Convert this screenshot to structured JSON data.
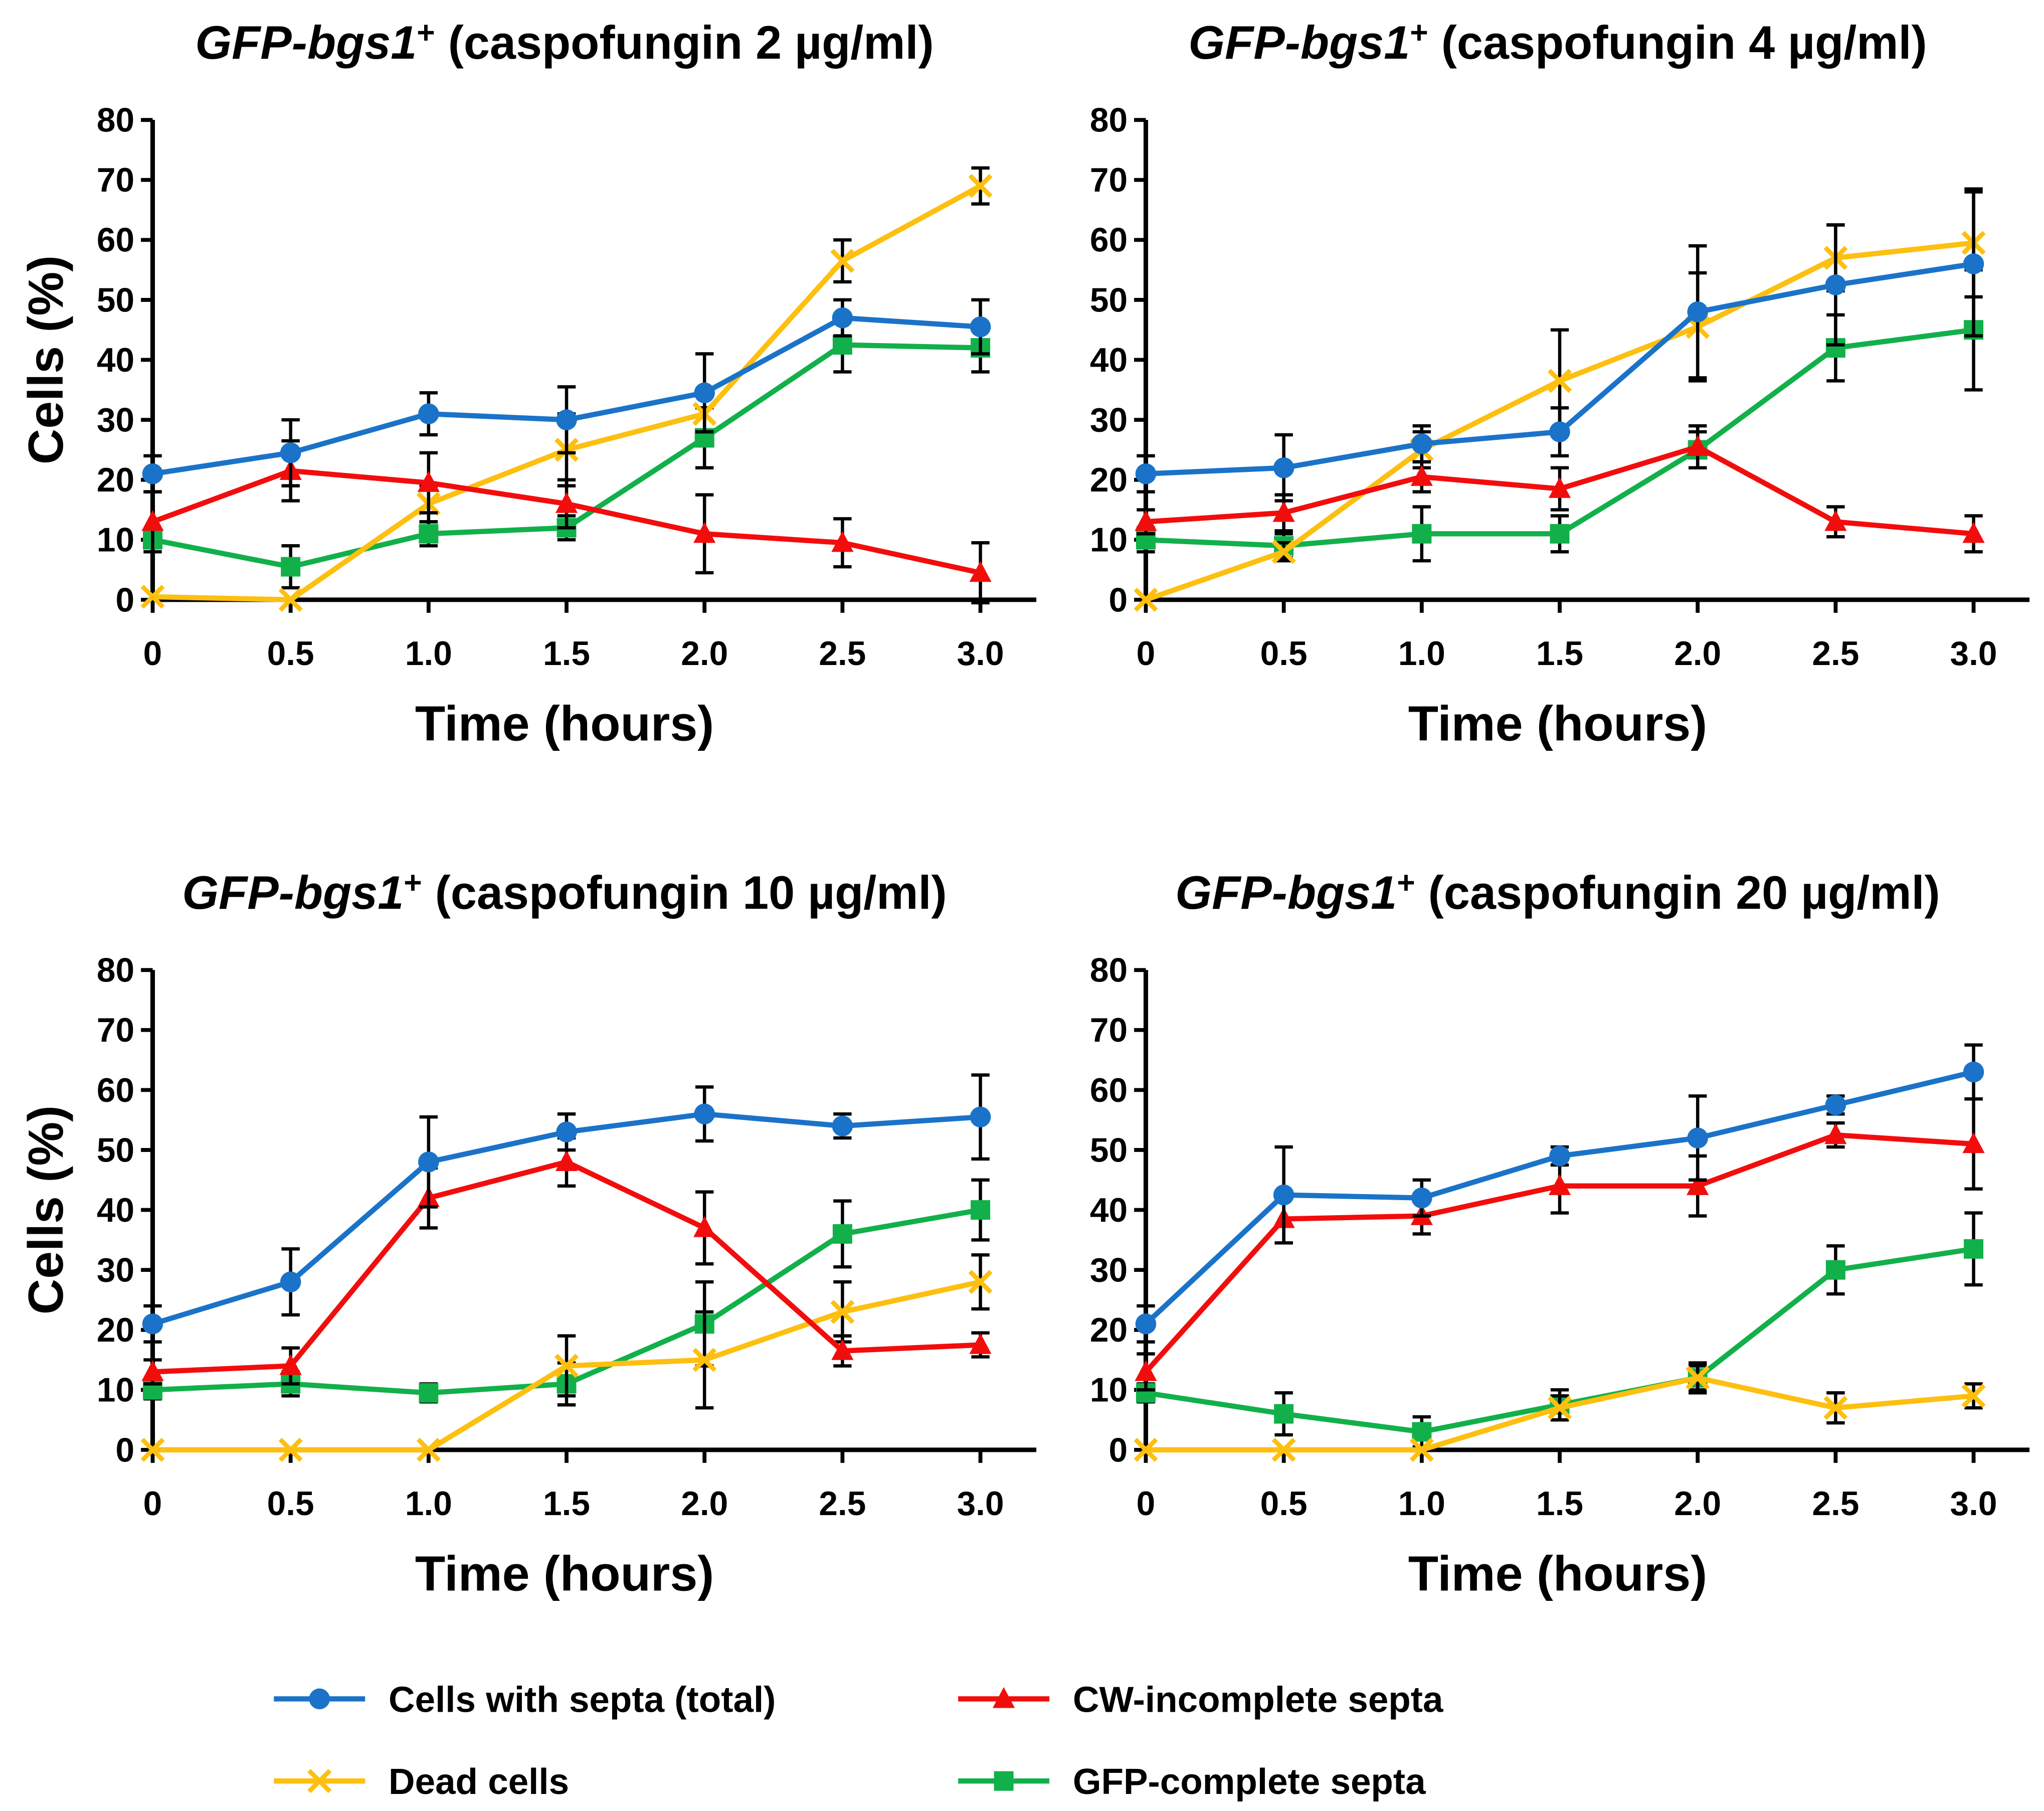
{
  "legend": [
    {
      "key": "total",
      "label": "Cells with septa (total)",
      "color": "#1a73c8",
      "marker": "circle"
    },
    {
      "key": "cw",
      "label": "CW-incomplete septa",
      "color": "#f20d0d",
      "marker": "triangle"
    },
    {
      "key": "dead",
      "label": "Dead cells",
      "color": "#fdbf10",
      "marker": "x"
    },
    {
      "key": "gfp",
      "label": "GFP-complete septa",
      "color": "#12b04a",
      "marker": "square"
    }
  ],
  "chart_data": [
    {
      "type": "line",
      "title_gene": "GFP-bgs1",
      "title_sup": "+",
      "title_rest": " (caspofungin 2 µg/ml)",
      "xlabel": "Time (hours)",
      "ylabel": "Cells (%)",
      "x": [
        0,
        0.5,
        1.0,
        1.5,
        2.0,
        2.5,
        3.0
      ],
      "xticks": [
        "0",
        "0.5",
        "1.0",
        "1.5",
        "2.0",
        "2.5",
        "3.0"
      ],
      "yticks": [
        "0",
        "10",
        "20",
        "30",
        "40",
        "50",
        "60",
        "70",
        "80"
      ],
      "ylim": [
        0,
        80
      ],
      "series": [
        {
          "key": "total",
          "values": [
            21,
            24.5,
            31,
            30,
            34.5,
            47,
            45.5
          ],
          "err": [
            3,
            5.5,
            3.5,
            5.5,
            6.5,
            3,
            4.5
          ]
        },
        {
          "key": "cw",
          "values": [
            13,
            21.5,
            19.5,
            16,
            11,
            9.5,
            4.5
          ],
          "err": [
            5,
            5,
            5,
            4,
            6.5,
            4,
            5
          ]
        },
        {
          "key": "dead",
          "values": [
            0.5,
            0,
            16,
            25,
            31,
            56.5,
            69
          ],
          "err": [
            0,
            0,
            3,
            6,
            3,
            3.5,
            3
          ]
        },
        {
          "key": "gfp",
          "values": [
            10,
            5.5,
            11,
            12,
            27,
            42.5,
            42
          ],
          "err": [
            0,
            3.5,
            2,
            2,
            5,
            4.5,
            4
          ]
        }
      ]
    },
    {
      "type": "line",
      "title_gene": "GFP-bgs1",
      "title_sup": "+",
      "title_rest": " (caspofungin 4 µg/ml)",
      "xlabel": "Time (hours)",
      "ylabel": "",
      "x": [
        0,
        0.5,
        1.0,
        1.5,
        2.0,
        2.5,
        3.0
      ],
      "xticks": [
        "0",
        "0.5",
        "1.0",
        "1.5",
        "2.0",
        "2.5",
        "3.0"
      ],
      "yticks": [
        "0",
        "10",
        "20",
        "30",
        "40",
        "50",
        "60",
        "70",
        "80"
      ],
      "ylim": [
        0,
        80
      ],
      "series": [
        {
          "key": "total",
          "values": [
            21,
            22,
            26,
            28,
            48,
            52.5,
            56
          ],
          "err": [
            3,
            5.5,
            3,
            4,
            11,
            10,
            12
          ]
        },
        {
          "key": "cw",
          "values": [
            13,
            14.5,
            20.5,
            18.5,
            25.5,
            13,
            11
          ],
          "err": [
            2,
            3,
            2.5,
            3.5,
            3.5,
            2.5,
            3
          ]
        },
        {
          "key": "dead",
          "values": [
            0,
            8,
            25,
            36.5,
            45.5,
            57,
            59.5
          ],
          "err": [
            0,
            1.5,
            3,
            8.5,
            9,
            5.5,
            9
          ]
        },
        {
          "key": "gfp",
          "values": [
            10,
            9,
            11,
            11,
            25,
            42,
            45
          ],
          "err": [
            2,
            2,
            4.5,
            3,
            3,
            5.5,
            10
          ]
        }
      ]
    },
    {
      "type": "line",
      "title_gene": "GFP-bgs1",
      "title_sup": "+",
      "title_rest": " (caspofungin 10 µg/ml)",
      "xlabel": "Time (hours)",
      "ylabel": "Cells (%)",
      "x": [
        0,
        0.5,
        1.0,
        1.5,
        2.0,
        2.5,
        3.0
      ],
      "xticks": [
        "0",
        "0.5",
        "1.0",
        "1.5",
        "2.0",
        "2.5",
        "3.0"
      ],
      "yticks": [
        "0",
        "10",
        "20",
        "30",
        "40",
        "50",
        "60",
        "70",
        "80"
      ],
      "ylim": [
        0,
        80
      ],
      "series": [
        {
          "key": "total",
          "values": [
            21,
            28,
            48,
            53,
            56,
            54,
            55.5
          ],
          "err": [
            3,
            5.5,
            7.5,
            3,
            4.5,
            2,
            7
          ]
        },
        {
          "key": "cw",
          "values": [
            13,
            14,
            42,
            48,
            37,
            16.5,
            17.5
          ],
          "err": [
            2,
            3,
            5,
            4,
            6,
            2.5,
            2
          ]
        },
        {
          "key": "dead",
          "values": [
            0,
            0,
            0,
            14,
            15,
            23,
            28
          ],
          "err": [
            0,
            0,
            0,
            5,
            8,
            5,
            4.5
          ]
        },
        {
          "key": "gfp",
          "values": [
            10,
            11,
            9.5,
            11,
            21,
            36,
            40
          ],
          "err": [
            1.5,
            2,
            1.5,
            3.5,
            7,
            5.5,
            5
          ]
        }
      ]
    },
    {
      "type": "line",
      "title_gene": "GFP-bgs1",
      "title_sup": "+",
      "title_rest": " (caspofungin 20 µg/ml)",
      "xlabel": "Time (hours)",
      "ylabel": "",
      "x": [
        0,
        0.5,
        1.0,
        1.5,
        2.0,
        2.5,
        3.0
      ],
      "xticks": [
        "0",
        "0.5",
        "1.0",
        "1.5",
        "2.0",
        "2.5",
        "3.0"
      ],
      "yticks": [
        "0",
        "10",
        "20",
        "30",
        "40",
        "50",
        "60",
        "70",
        "80"
      ],
      "ylim": [
        0,
        80
      ],
      "series": [
        {
          "key": "total",
          "values": [
            21,
            42.5,
            42,
            49,
            52,
            57.5,
            63
          ],
          "err": [
            3,
            8,
            3,
            1.5,
            7,
            1.5,
            4.5
          ]
        },
        {
          "key": "cw",
          "values": [
            13,
            38.5,
            39,
            44,
            44,
            52.5,
            51
          ],
          "err": [
            3,
            4,
            3,
            4.5,
            5,
            2,
            7.5
          ]
        },
        {
          "key": "dead",
          "values": [
            0,
            0,
            0,
            7,
            12,
            7,
            9
          ],
          "err": [
            0,
            0,
            0,
            2,
            2,
            2.5,
            2
          ]
        },
        {
          "key": "gfp",
          "values": [
            9.5,
            6,
            3,
            7.5,
            12,
            30,
            33.5
          ],
          "err": [
            1.5,
            3.5,
            2.5,
            2.5,
            2.5,
            4,
            6
          ]
        }
      ]
    }
  ]
}
